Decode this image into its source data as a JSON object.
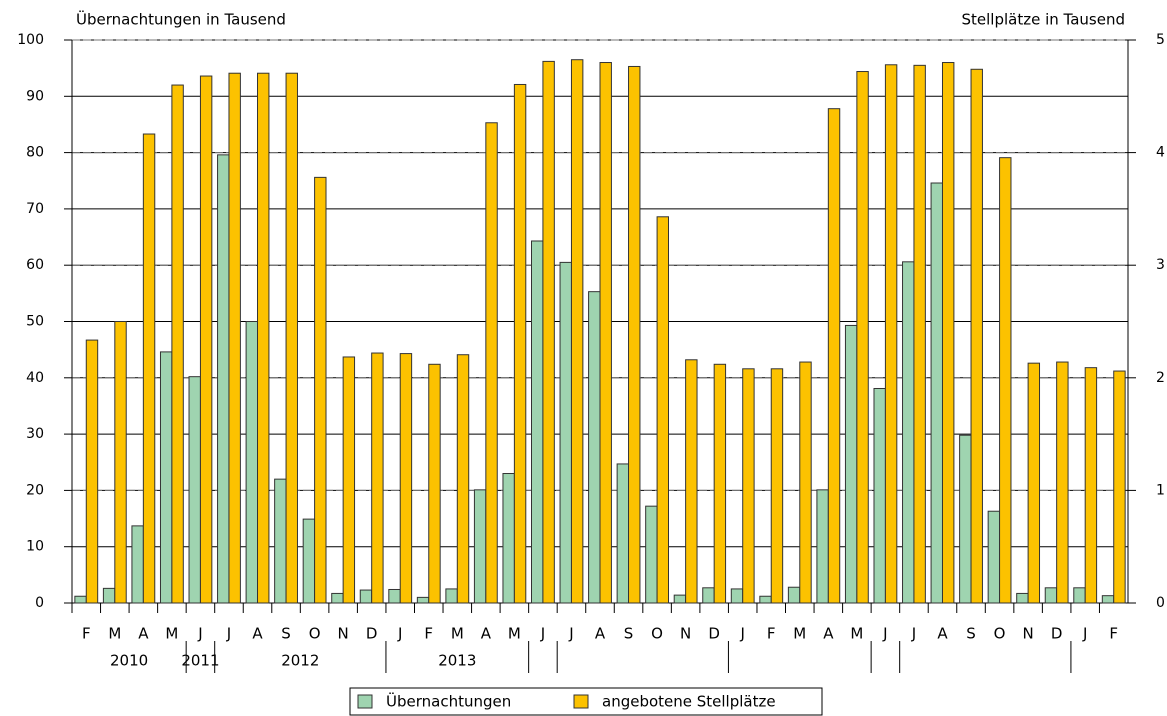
{
  "chart_data": {
    "type": "bar",
    "y_label": "Übernachtungen in Tausend",
    "y2_label": "Stellplätze in Tausend",
    "categories": [
      "F",
      "M",
      "A",
      "M",
      "J",
      "J",
      "A",
      "S",
      "O",
      "N",
      "D",
      "J",
      "F",
      "M",
      "A",
      "M",
      "J",
      "J",
      "A",
      "S",
      "O",
      "N",
      "D",
      "J",
      "F",
      "M",
      "A",
      "M",
      "J",
      "J",
      "A",
      "S",
      "O",
      "N",
      "D",
      "J",
      "F"
    ],
    "years": [
      "2010",
      "2011",
      "2012",
      "2013"
    ],
    "series": [
      {
        "name": "Übernachtungen",
        "color": "#9fd4b0",
        "values": [
          1.2,
          2.6,
          13.7,
          44.6,
          40.2,
          79.6,
          50.0,
          22.0,
          14.9,
          1.7,
          2.3,
          2.4,
          1.0,
          2.5,
          20.1,
          23.0,
          64.3,
          60.5,
          55.3,
          24.7,
          17.2,
          1.4,
          2.7,
          2.5,
          1.2,
          2.8,
          20.1,
          49.3,
          38.1,
          60.6,
          74.6,
          29.8,
          16.3,
          1.7,
          2.7,
          2.7,
          1.3
        ]
      },
      {
        "name": "angebotene Stellplätze",
        "color": "#fcc200",
        "axis": "y2",
        "values": [
          2.335,
          2.5,
          4.165,
          4.6,
          4.68,
          4.705,
          4.705,
          4.705,
          3.78,
          2.185,
          2.22,
          2.215,
          2.12,
          2.205,
          4.265,
          4.605,
          4.81,
          4.825,
          4.8,
          4.765,
          3.43,
          2.16,
          2.12,
          2.08,
          2.08,
          2.14,
          4.39,
          4.72,
          4.78,
          4.775,
          4.8,
          4.74,
          3.955,
          2.13,
          2.14,
          2.09,
          2.06
        ]
      }
    ],
    "ylim": [
      0,
      100
    ],
    "yticks": [
      0,
      10,
      20,
      30,
      40,
      50,
      60,
      70,
      80,
      90,
      100
    ],
    "y2lim": [
      0,
      5
    ],
    "y2ticks": [
      0,
      1,
      2,
      3,
      4,
      5
    ],
    "grid": true
  }
}
